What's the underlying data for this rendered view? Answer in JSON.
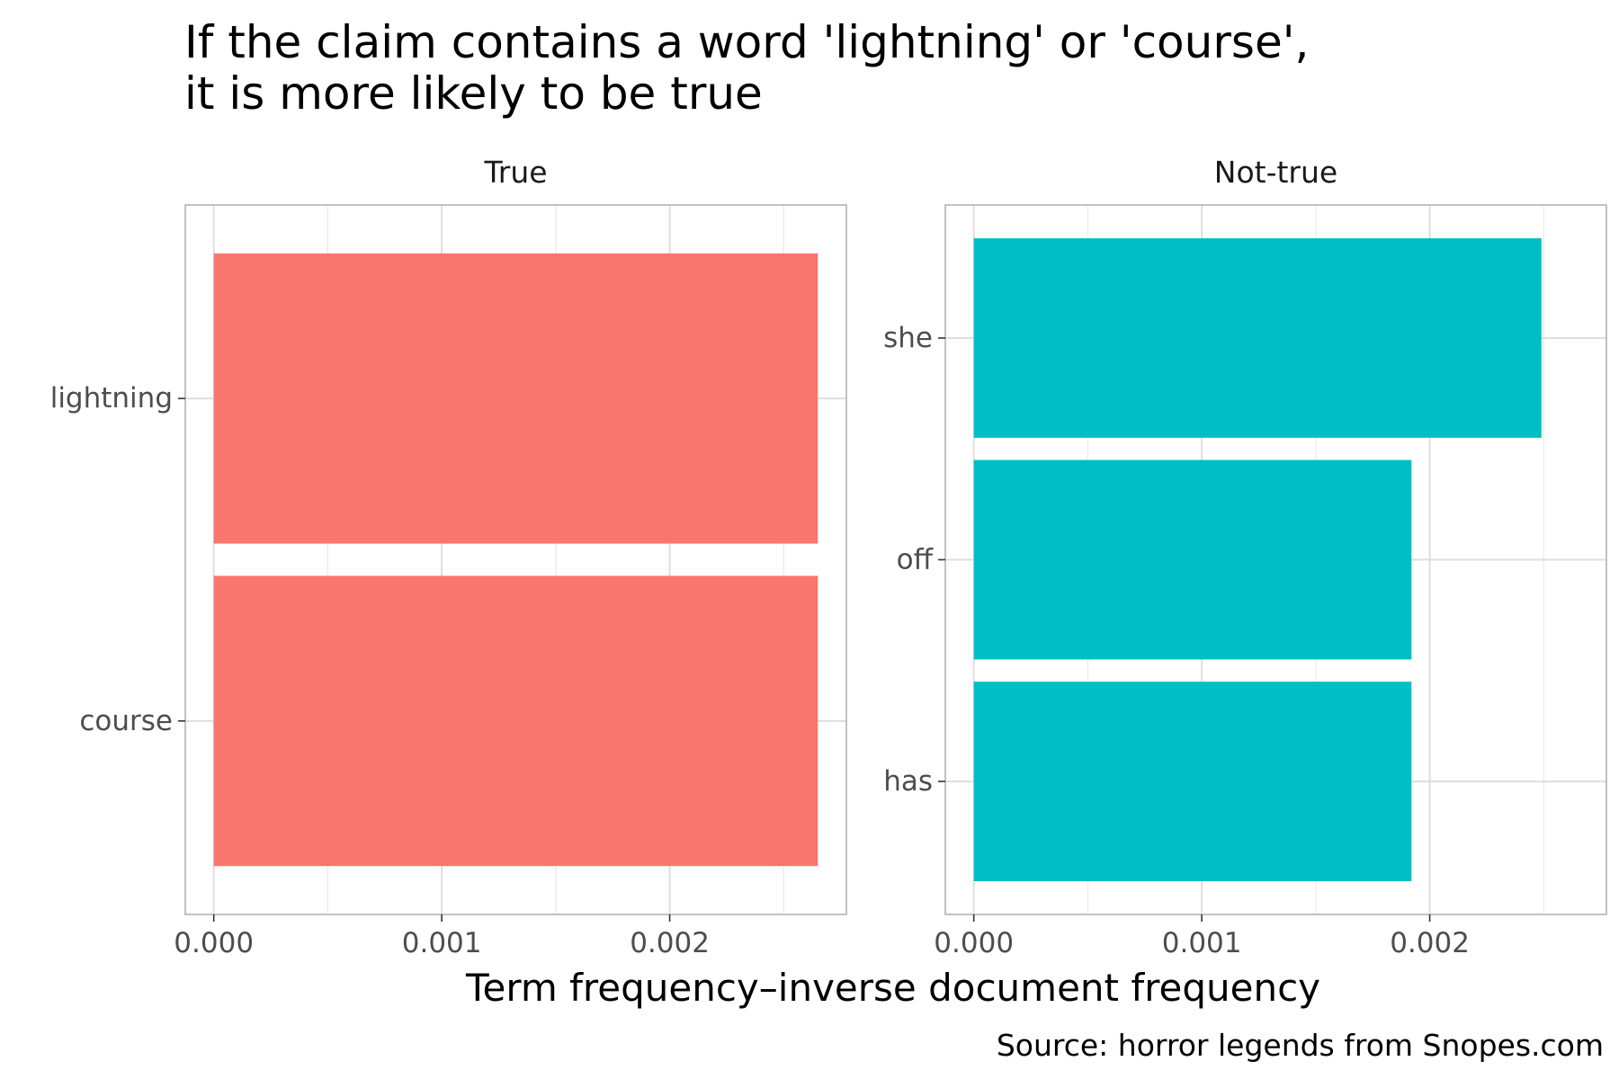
{
  "chart_data": {
    "type": "bar",
    "orientation": "horizontal",
    "title_lines": [
      "If the claim contains a word 'lightning' or 'course',",
      "it is more likely to be true"
    ],
    "xlabel": "Term frequency–inverse document frequency",
    "caption": "Source: horror legends from Snopes.com",
    "x_ticks": [
      "0.000",
      "0.001",
      "0.002"
    ],
    "grid": true,
    "legend": "none",
    "panels": [
      {
        "name": "True",
        "color": "#F8766D",
        "xlim": [
          -0.000125,
          0.002775
        ],
        "categories": [
          "lightning",
          "course"
        ],
        "values": [
          0.00265,
          0.00265
        ]
      },
      {
        "name": "Not-true",
        "color": "#00BFC4",
        "xlim": [
          -0.000125,
          0.002775
        ],
        "categories": [
          "she",
          "off",
          "has"
        ],
        "values": [
          0.00249,
          0.00192,
          0.00192
        ]
      }
    ]
  }
}
